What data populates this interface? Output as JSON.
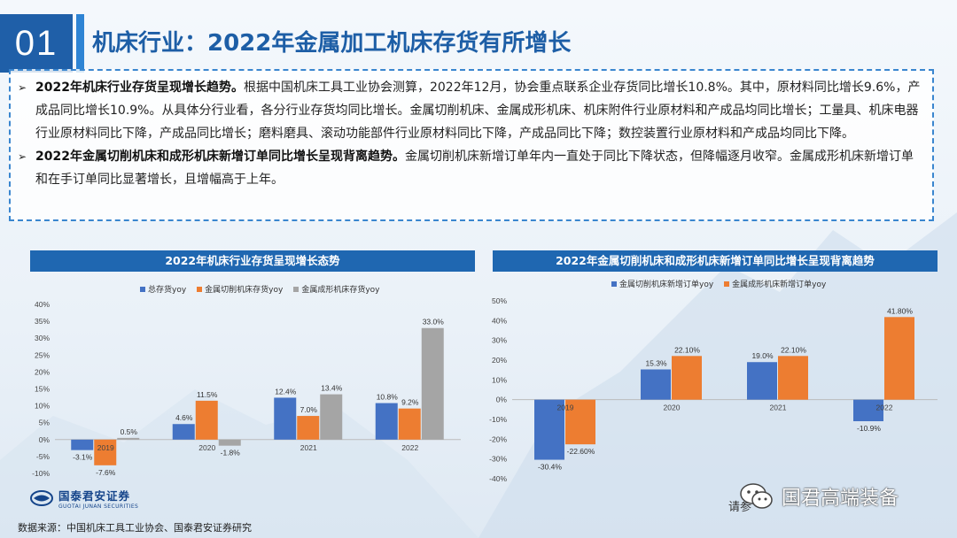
{
  "header": {
    "number": "01",
    "title": "机床行业：2022年金属加工机床存货有所增长"
  },
  "bullets": [
    {
      "bold": "2022年机床行业存货呈现增长趋势。",
      "text": "根据中国机床工具工业协会测算，2022年12月，协会重点联系企业存货同比增长10.8%。其中，原材料同比增长9.6%，产成品同比增长10.9%。从具体分行业看，各分行业存货均同比增长。金属切削机床、金属成形机床、机床附件行业原材料和产成品均同比增长；工量具、机床电器行业原材料同比下降，产成品同比增长；磨料磨具、滚动功能部件行业原材料同比下降，产成品同比下降；数控装置行业原材料和产成品均同比下降。"
    },
    {
      "bold": "2022年金属切削机床和成形机床新增订单同比增长呈现背离趋势。",
      "text": "金属切削机床新增订单年内一直处于同比下降状态，但降幅逐月收窄。金属成形机床新增订单和在手订单同比显著增长，且增幅高于上年。"
    }
  ],
  "bullet_marker": "➢",
  "chart_data": [
    {
      "type": "bar",
      "title": "2022年机床行业存货呈现增长态势",
      "categories": [
        "2019",
        "2020",
        "2021",
        "2022"
      ],
      "series": [
        {
          "name": "总存货yoy",
          "color": "#4472c4",
          "values": [
            -3.1,
            4.6,
            12.4,
            10.8
          ],
          "labels": [
            "-3.1%",
            "4.6%",
            "12.4%",
            "10.8%"
          ]
        },
        {
          "name": "金属切削机床存货yoy",
          "color": "#ed7d31",
          "values": [
            -7.6,
            11.5,
            7.0,
            9.2
          ],
          "labels": [
            "-7.6%",
            "11.5%",
            "7.0%",
            "9.2%"
          ]
        },
        {
          "name": "金属成形机床存货yoy",
          "color": "#a5a5a5",
          "values": [
            0.5,
            -1.8,
            13.4,
            33.0
          ],
          "labels": [
            "0.5%",
            "-1.8%",
            "13.4%",
            "33.0%"
          ]
        }
      ],
      "ylim": [
        -10,
        40
      ],
      "yticks": [
        "-10%",
        "-5%",
        "0%",
        "5%",
        "10%",
        "15%",
        "20%",
        "25%",
        "30%",
        "35%",
        "40%"
      ],
      "legend": "top"
    },
    {
      "type": "bar",
      "title": "2022年金属切削机床和成形机床新增订单同比增长呈现背离趋势",
      "categories": [
        "2019",
        "2020",
        "2021",
        "2022"
      ],
      "series": [
        {
          "name": "金属切削机床新增订单yoy",
          "color": "#4472c4",
          "values": [
            -30.4,
            15.3,
            19.0,
            -10.9
          ],
          "labels": [
            "-30.4%",
            "15.3%",
            "19.0%",
            "-10.9%"
          ]
        },
        {
          "name": "金属成形机床新增订单yoy",
          "color": "#ed7d31",
          "values": [
            -22.6,
            22.1,
            22.1,
            41.8
          ],
          "labels": [
            "-22.60%",
            "22.10%",
            "22.10%",
            "41.80%"
          ]
        }
      ],
      "ylim": [
        -40,
        50
      ],
      "yticks": [
        "-40%",
        "-30%",
        "-20%",
        "-10%",
        "0%",
        "10%",
        "20%",
        "30%",
        "40%",
        "50%"
      ],
      "legend": "top"
    }
  ],
  "logo": {
    "cn": "国泰君安证券",
    "en": "GUOTAI JUNAN SECURITIES"
  },
  "source": "数据来源：中国机床工具工业协会、国泰君安证券研究",
  "watermark": "国君高端装备",
  "footnote": "请参"
}
